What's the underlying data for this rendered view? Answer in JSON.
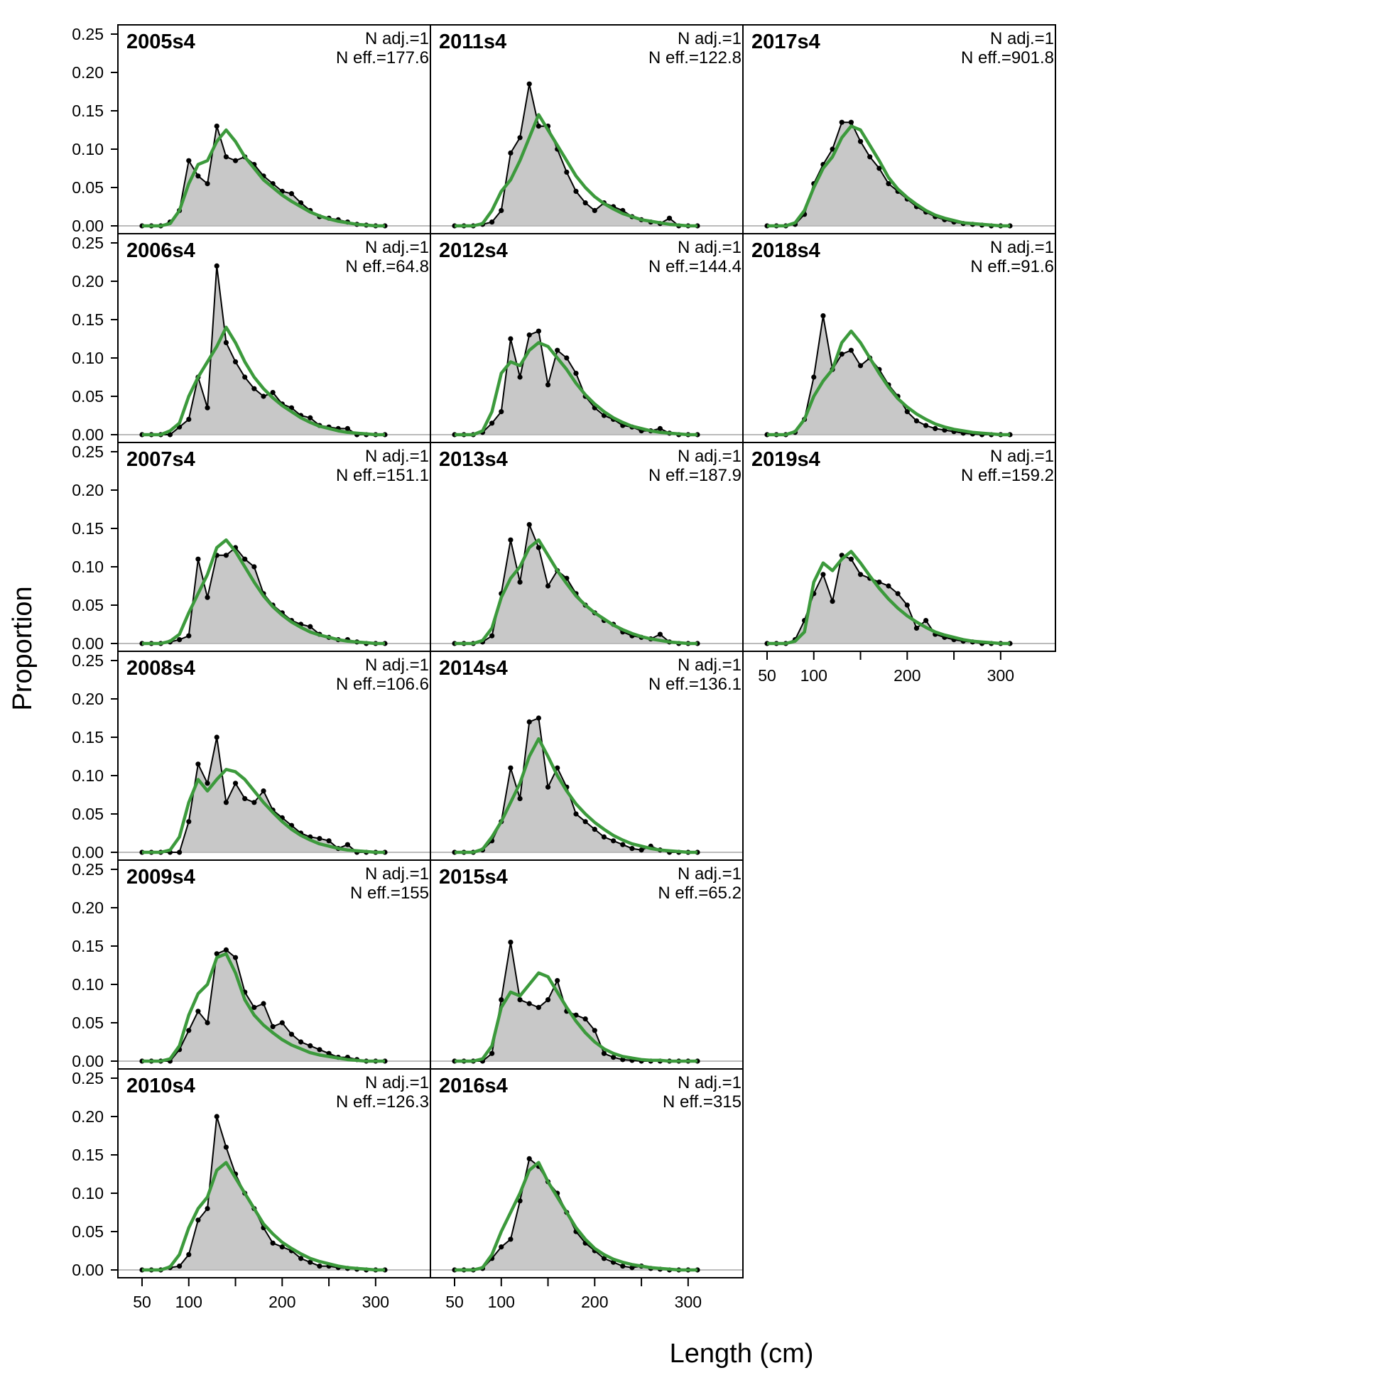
{
  "chart_data": {
    "type": "area",
    "xlabel": "Length (cm)",
    "ylabel": "Proportion",
    "xlim": [
      50,
      310
    ],
    "ylim": [
      0,
      0.25
    ],
    "x_ticks": [
      50,
      100,
      200,
      300
    ],
    "y_ticks": [
      "0.00",
      "0.05",
      "0.10",
      "0.15",
      "0.20",
      "0.25"
    ],
    "grid": false,
    "colors": {
      "observed_fill": "#c8c8c8",
      "observed_line": "#000000",
      "expected_line": "#3c9a3c",
      "zero_line": "#bbbbbb"
    },
    "series_keys": [
      "observed",
      "expected"
    ],
    "x": [
      50,
      60,
      70,
      80,
      90,
      100,
      110,
      120,
      130,
      140,
      150,
      160,
      170,
      180,
      190,
      200,
      210,
      220,
      230,
      240,
      250,
      260,
      270,
      280,
      290,
      300,
      310
    ],
    "panels": [
      {
        "title": "2005s4",
        "nadj": "N adj.=1",
        "neff": "N eff.=177.6",
        "observed": [
          0,
          0,
          0,
          0.005,
          0.02,
          0.085,
          0.065,
          0.055,
          0.13,
          0.09,
          0.085,
          0.09,
          0.08,
          0.065,
          0.055,
          0.045,
          0.042,
          0.03,
          0.02,
          0.012,
          0.01,
          0.008,
          0.005,
          0.002,
          0.001,
          0,
          0
        ],
        "expected": [
          0,
          0,
          0,
          0.003,
          0.02,
          0.055,
          0.08,
          0.085,
          0.11,
          0.125,
          0.11,
          0.09,
          0.075,
          0.06,
          0.05,
          0.04,
          0.032,
          0.025,
          0.018,
          0.013,
          0.009,
          0.006,
          0.004,
          0.002,
          0.001,
          0,
          0
        ]
      },
      {
        "title": "2006s4",
        "nadj": "N adj.=1",
        "neff": "N eff.=64.8",
        "observed": [
          0,
          0,
          0,
          0,
          0.01,
          0.02,
          0.075,
          0.035,
          0.22,
          0.12,
          0.095,
          0.075,
          0.06,
          0.05,
          0.055,
          0.04,
          0.035,
          0.025,
          0.022,
          0.012,
          0.01,
          0.008,
          0.008,
          0,
          0,
          0,
          0
        ],
        "expected": [
          0,
          0,
          0,
          0.005,
          0.015,
          0.05,
          0.075,
          0.095,
          0.115,
          0.14,
          0.12,
          0.095,
          0.075,
          0.06,
          0.048,
          0.038,
          0.03,
          0.022,
          0.016,
          0.011,
          0.008,
          0.005,
          0.003,
          0.002,
          0.001,
          0,
          0
        ]
      },
      {
        "title": "2007s4",
        "nadj": "N adj.=1",
        "neff": "N eff.=151.1",
        "observed": [
          0,
          0,
          0,
          0.002,
          0.005,
          0.01,
          0.11,
          0.06,
          0.115,
          0.115,
          0.125,
          0.11,
          0.1,
          0.065,
          0.05,
          0.04,
          0.03,
          0.025,
          0.022,
          0.012,
          0.008,
          0.005,
          0.005,
          0.002,
          0,
          0,
          0
        ],
        "expected": [
          0,
          0,
          0,
          0.003,
          0.012,
          0.04,
          0.065,
          0.09,
          0.125,
          0.135,
          0.12,
          0.1,
          0.08,
          0.062,
          0.048,
          0.037,
          0.028,
          0.021,
          0.015,
          0.011,
          0.008,
          0.005,
          0.003,
          0.002,
          0.001,
          0,
          0
        ]
      },
      {
        "title": "2008s4",
        "nadj": "N adj.=1",
        "neff": "N eff.=106.6",
        "observed": [
          0,
          0,
          0,
          0,
          0,
          0.04,
          0.115,
          0.09,
          0.15,
          0.065,
          0.09,
          0.07,
          0.065,
          0.08,
          0.055,
          0.045,
          0.035,
          0.025,
          0.02,
          0.018,
          0.015,
          0.005,
          0.01,
          0,
          0,
          0,
          0
        ],
        "expected": [
          0,
          0,
          0,
          0.003,
          0.02,
          0.065,
          0.095,
          0.08,
          0.095,
          0.108,
          0.105,
          0.095,
          0.08,
          0.065,
          0.052,
          0.04,
          0.03,
          0.022,
          0.016,
          0.011,
          0.008,
          0.005,
          0.003,
          0.002,
          0.001,
          0,
          0
        ]
      },
      {
        "title": "2009s4",
        "nadj": "N adj.=1",
        "neff": "N eff.=155",
        "observed": [
          0,
          0,
          0,
          0,
          0.015,
          0.04,
          0.065,
          0.05,
          0.14,
          0.145,
          0.135,
          0.09,
          0.07,
          0.075,
          0.045,
          0.05,
          0.035,
          0.025,
          0.02,
          0.015,
          0.01,
          0.005,
          0.005,
          0.002,
          0,
          0,
          0
        ],
        "expected": [
          0,
          0,
          0,
          0.003,
          0.02,
          0.06,
          0.088,
          0.1,
          0.135,
          0.14,
          0.115,
          0.08,
          0.06,
          0.047,
          0.037,
          0.028,
          0.021,
          0.016,
          0.011,
          0.008,
          0.006,
          0.004,
          0.002,
          0.001,
          0,
          0,
          0
        ]
      },
      {
        "title": "2010s4",
        "nadj": "N adj.=1",
        "neff": "N eff.=126.3",
        "observed": [
          0,
          0,
          0,
          0.003,
          0.005,
          0.02,
          0.065,
          0.08,
          0.2,
          0.16,
          0.125,
          0.1,
          0.08,
          0.055,
          0.035,
          0.03,
          0.025,
          0.015,
          0.01,
          0.005,
          0.005,
          0.003,
          0.002,
          0.001,
          0,
          0,
          0
        ],
        "expected": [
          0,
          0,
          0,
          0.004,
          0.02,
          0.055,
          0.08,
          0.095,
          0.13,
          0.14,
          0.12,
          0.1,
          0.08,
          0.06,
          0.047,
          0.036,
          0.028,
          0.021,
          0.015,
          0.011,
          0.008,
          0.005,
          0.003,
          0.002,
          0.001,
          0,
          0
        ]
      },
      {
        "title": "2011s4",
        "nadj": "N adj.=1",
        "neff": "N eff.=122.8",
        "observed": [
          0,
          0,
          0,
          0.002,
          0.005,
          0.02,
          0.095,
          0.115,
          0.185,
          0.13,
          0.13,
          0.1,
          0.07,
          0.045,
          0.03,
          0.02,
          0.03,
          0.025,
          0.02,
          0.012,
          0.008,
          0.005,
          0.003,
          0.01,
          0,
          0,
          0
        ],
        "expected": [
          0,
          0,
          0,
          0.003,
          0.02,
          0.045,
          0.06,
          0.085,
          0.115,
          0.145,
          0.125,
          0.105,
          0.085,
          0.065,
          0.05,
          0.038,
          0.029,
          0.022,
          0.016,
          0.012,
          0.008,
          0.006,
          0.004,
          0.002,
          0.001,
          0,
          0
        ]
      },
      {
        "title": "2012s4",
        "nadj": "N adj.=1",
        "neff": "N eff.=144.4",
        "observed": [
          0,
          0,
          0,
          0.003,
          0.015,
          0.03,
          0.125,
          0.075,
          0.13,
          0.135,
          0.065,
          0.11,
          0.1,
          0.08,
          0.05,
          0.035,
          0.025,
          0.02,
          0.012,
          0.01,
          0.005,
          0.005,
          0.008,
          0.002,
          0,
          0,
          0
        ],
        "expected": [
          0,
          0,
          0,
          0.005,
          0.03,
          0.08,
          0.095,
          0.09,
          0.11,
          0.12,
          0.115,
          0.1,
          0.085,
          0.067,
          0.052,
          0.04,
          0.03,
          0.022,
          0.016,
          0.011,
          0.008,
          0.005,
          0.003,
          0.002,
          0.001,
          0,
          0
        ]
      },
      {
        "title": "2013s4",
        "nadj": "N adj.=1",
        "neff": "N eff.=187.9",
        "observed": [
          0,
          0,
          0,
          0.002,
          0.01,
          0.065,
          0.135,
          0.08,
          0.155,
          0.125,
          0.075,
          0.095,
          0.085,
          0.065,
          0.05,
          0.04,
          0.03,
          0.025,
          0.015,
          0.01,
          0.008,
          0.006,
          0.012,
          0.002,
          0,
          0,
          0
        ],
        "expected": [
          0,
          0,
          0,
          0.004,
          0.02,
          0.06,
          0.085,
          0.1,
          0.125,
          0.135,
          0.115,
          0.095,
          0.078,
          0.062,
          0.05,
          0.04,
          0.032,
          0.024,
          0.018,
          0.013,
          0.009,
          0.006,
          0.004,
          0.002,
          0.001,
          0,
          0
        ]
      },
      {
        "title": "2014s4",
        "nadj": "N adj.=1",
        "neff": "N eff.=136.1",
        "observed": [
          0,
          0,
          0,
          0.003,
          0.015,
          0.04,
          0.11,
          0.07,
          0.17,
          0.175,
          0.085,
          0.11,
          0.085,
          0.05,
          0.04,
          0.03,
          0.02,
          0.015,
          0.01,
          0.005,
          0.003,
          0.008,
          0.003,
          0,
          0,
          0,
          0
        ],
        "expected": [
          0,
          0,
          0,
          0.004,
          0.02,
          0.04,
          0.065,
          0.09,
          0.125,
          0.148,
          0.125,
          0.1,
          0.08,
          0.063,
          0.05,
          0.039,
          0.03,
          0.022,
          0.016,
          0.011,
          0.008,
          0.005,
          0.003,
          0.002,
          0.001,
          0,
          0
        ]
      },
      {
        "title": "2015s4",
        "nadj": "N adj.=1",
        "neff": "N eff.=65.2",
        "observed": [
          0,
          0,
          0,
          0,
          0.01,
          0.08,
          0.155,
          0.08,
          0.075,
          0.07,
          0.08,
          0.105,
          0.065,
          0.06,
          0.055,
          0.04,
          0.01,
          0.005,
          0.002,
          0.001,
          0,
          0,
          0,
          0,
          0,
          0,
          0
        ],
        "expected": [
          0,
          0,
          0,
          0.003,
          0.02,
          0.07,
          0.09,
          0.085,
          0.1,
          0.115,
          0.11,
          0.09,
          0.07,
          0.052,
          0.037,
          0.025,
          0.016,
          0.01,
          0.006,
          0.004,
          0.002,
          0.001,
          0.001,
          0,
          0,
          0,
          0
        ]
      },
      {
        "title": "2016s4",
        "nadj": "N adj.=1",
        "neff": "N eff.=315",
        "observed": [
          0,
          0,
          0,
          0.002,
          0.015,
          0.03,
          0.04,
          0.09,
          0.145,
          0.135,
          0.115,
          0.1,
          0.075,
          0.05,
          0.035,
          0.025,
          0.015,
          0.01,
          0.005,
          0.003,
          0.005,
          0.002,
          0.001,
          0,
          0,
          0,
          0
        ],
        "expected": [
          0,
          0,
          0,
          0.003,
          0.02,
          0.05,
          0.075,
          0.1,
          0.13,
          0.14,
          0.115,
          0.095,
          0.075,
          0.055,
          0.04,
          0.028,
          0.02,
          0.014,
          0.01,
          0.007,
          0.005,
          0.003,
          0.002,
          0.001,
          0,
          0,
          0
        ]
      },
      {
        "title": "2017s4",
        "nadj": "N adj.=1",
        "neff": "N eff.=901.8",
        "observed": [
          0,
          0,
          0,
          0.002,
          0.015,
          0.055,
          0.08,
          0.1,
          0.135,
          0.135,
          0.11,
          0.09,
          0.075,
          0.055,
          0.045,
          0.035,
          0.025,
          0.018,
          0.012,
          0.008,
          0.005,
          0.003,
          0.002,
          0.001,
          0,
          0,
          0
        ],
        "expected": [
          0,
          0,
          0,
          0.004,
          0.02,
          0.05,
          0.075,
          0.09,
          0.115,
          0.13,
          0.125,
          0.105,
          0.085,
          0.063,
          0.048,
          0.037,
          0.028,
          0.02,
          0.014,
          0.01,
          0.007,
          0.004,
          0.003,
          0.002,
          0.001,
          0,
          0
        ]
      },
      {
        "title": "2018s4",
        "nadj": "N adj.=1",
        "neff": "N eff.=91.6",
        "observed": [
          0,
          0,
          0,
          0.003,
          0.02,
          0.075,
          0.155,
          0.085,
          0.105,
          0.11,
          0.09,
          0.1,
          0.085,
          0.065,
          0.05,
          0.03,
          0.018,
          0.012,
          0.008,
          0.006,
          0.004,
          0.002,
          0.001,
          0,
          0,
          0,
          0
        ],
        "expected": [
          0,
          0,
          0,
          0.004,
          0.02,
          0.05,
          0.07,
          0.085,
          0.12,
          0.135,
          0.12,
          0.1,
          0.08,
          0.062,
          0.047,
          0.036,
          0.027,
          0.02,
          0.014,
          0.01,
          0.007,
          0.005,
          0.003,
          0.002,
          0.001,
          0,
          0
        ]
      },
      {
        "title": "2019s4",
        "nadj": "N adj.=1",
        "neff": "N eff.=159.2",
        "observed": [
          0,
          0,
          0,
          0.005,
          0.03,
          0.065,
          0.09,
          0.055,
          0.115,
          0.11,
          0.09,
          0.085,
          0.08,
          0.075,
          0.065,
          0.05,
          0.02,
          0.03,
          0.012,
          0.008,
          0.005,
          0.003,
          0.002,
          0,
          0,
          0,
          0
        ],
        "expected": [
          0,
          0,
          0,
          0.003,
          0.015,
          0.08,
          0.105,
          0.095,
          0.11,
          0.12,
          0.105,
          0.088,
          0.072,
          0.058,
          0.046,
          0.036,
          0.028,
          0.021,
          0.015,
          0.011,
          0.008,
          0.005,
          0.003,
          0.002,
          0.001,
          0,
          0
        ]
      }
    ]
  }
}
